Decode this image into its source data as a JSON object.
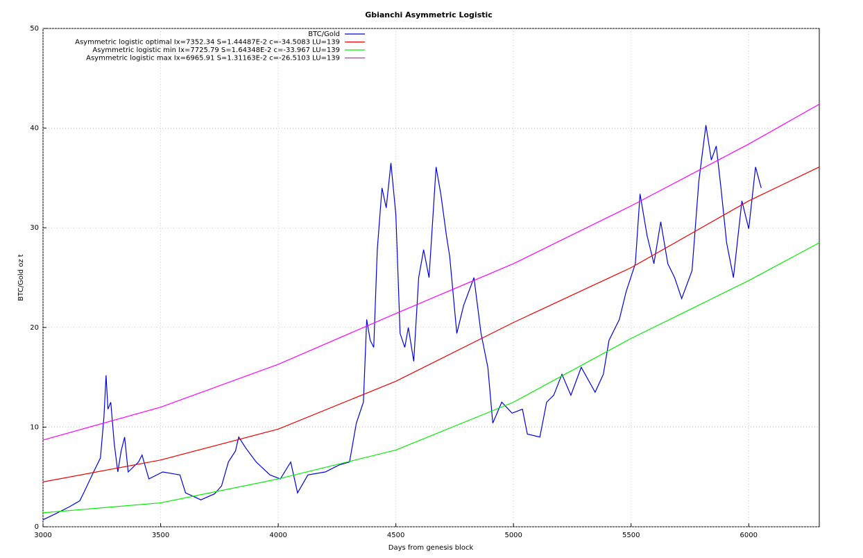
{
  "chart_data": {
    "type": "line",
    "title": "Gbianchi Asymmetric Logistic",
    "xlabel": "Days from genesis block",
    "ylabel": "BTC/Gold oz t",
    "xlim": [
      3000,
      6300
    ],
    "xticks": [
      3000,
      3500,
      4000,
      4500,
      5000,
      5500,
      6000
    ],
    "ylim": [
      0,
      50
    ],
    "yticks": [
      0,
      10,
      20,
      30,
      40,
      50
    ],
    "grid": true,
    "legend": "top",
    "series": [
      {
        "name": "BTC/Gold",
        "color": "#0000dd",
        "x": [
          3000,
          3053,
          3112,
          3156,
          3171,
          3215,
          3244,
          3259,
          3268,
          3276,
          3288,
          3303,
          3318,
          3332,
          3347,
          3362,
          3406,
          3421,
          3450,
          3509,
          3582,
          3606,
          3671,
          3729,
          3759,
          3788,
          3818,
          3832,
          3862,
          3906,
          3965,
          4009,
          4053,
          4082,
          4126,
          4200,
          4259,
          4303,
          4332,
          4362,
          4376,
          4391,
          4406,
          4421,
          4441,
          4459,
          4479,
          4500,
          4518,
          4538,
          4553,
          4576,
          4597,
          4618,
          4641,
          4671,
          4691,
          4715,
          4729,
          4759,
          4788,
          4832,
          4862,
          4891,
          4912,
          4950,
          4994,
          5038,
          5059,
          5112,
          5141,
          5171,
          5206,
          5244,
          5288,
          5347,
          5382,
          5406,
          5450,
          5479,
          5518,
          5538,
          5568,
          5597,
          5626,
          5656,
          5685,
          5715,
          5759,
          5788,
          5818,
          5841,
          5862,
          5882,
          5906,
          5935,
          5971,
          6000,
          6029,
          6053
        ],
        "values": [
          0.7,
          1.3,
          2.0,
          2.6,
          3.3,
          5.5,
          6.9,
          11,
          15.2,
          11.8,
          12.5,
          8.3,
          5.5,
          7.6,
          9,
          5.5,
          6.5,
          7.2,
          4.8,
          5.5,
          5.2,
          3.4,
          2.7,
          3.3,
          4.1,
          6.5,
          7.6,
          9,
          7.9,
          6.5,
          5.2,
          4.8,
          6.5,
          3.4,
          5.2,
          5.5,
          6.2,
          6.5,
          10.4,
          12.5,
          20.8,
          18.7,
          18,
          27.8,
          34,
          32,
          36.5,
          31.3,
          19.4,
          18,
          20,
          16.6,
          25,
          27.8,
          25,
          36.1,
          33.4,
          29.2,
          27.1,
          19.4,
          22.2,
          25,
          19.4,
          16,
          10.4,
          12.5,
          11.4,
          11.8,
          9.3,
          9,
          12.5,
          13.2,
          15.3,
          13.2,
          16,
          13.5,
          15.3,
          18.7,
          20.8,
          23.6,
          26.4,
          33.4,
          29.2,
          26.4,
          30.6,
          26.4,
          25,
          22.9,
          25.7,
          34.7,
          40.3,
          36.8,
          38.2,
          34,
          28.5,
          25,
          32.7,
          29.9,
          36.1,
          34
        ]
      },
      {
        "name": "Asymmetric logistic optimal Ix=7352.34 S=1.44487E-2 c=-34.5083 LU=139",
        "color": "#ee0000",
        "x": [
          3000,
          3500,
          4000,
          4500,
          5000,
          5500,
          6000,
          6300
        ],
        "values": [
          4.5,
          6.7,
          9.8,
          14.6,
          20.5,
          26,
          32.7,
          36.1
        ]
      },
      {
        "name": "Asymmetric logistic min Ix=7725.79 S=1.64348E-2 c=-33.967 LU=139",
        "color": "#00ee00",
        "x": [
          3000,
          3500,
          4000,
          4500,
          5000,
          5500,
          6000,
          6300
        ],
        "values": [
          1.4,
          2.4,
          4.8,
          7.7,
          12.5,
          18.9,
          24.7,
          28.5
        ]
      },
      {
        "name": "Asymmetric logistic max Ix=6965.91 S=1.31163E-2 c=-26.5103 LU=139",
        "color": "#ff00ff",
        "x": [
          3000,
          3500,
          4000,
          4500,
          5000,
          5500,
          6000,
          6300
        ],
        "values": [
          8.7,
          12.0,
          16.3,
          21.4,
          26.4,
          32.2,
          38.4,
          42.4
        ]
      }
    ]
  }
}
